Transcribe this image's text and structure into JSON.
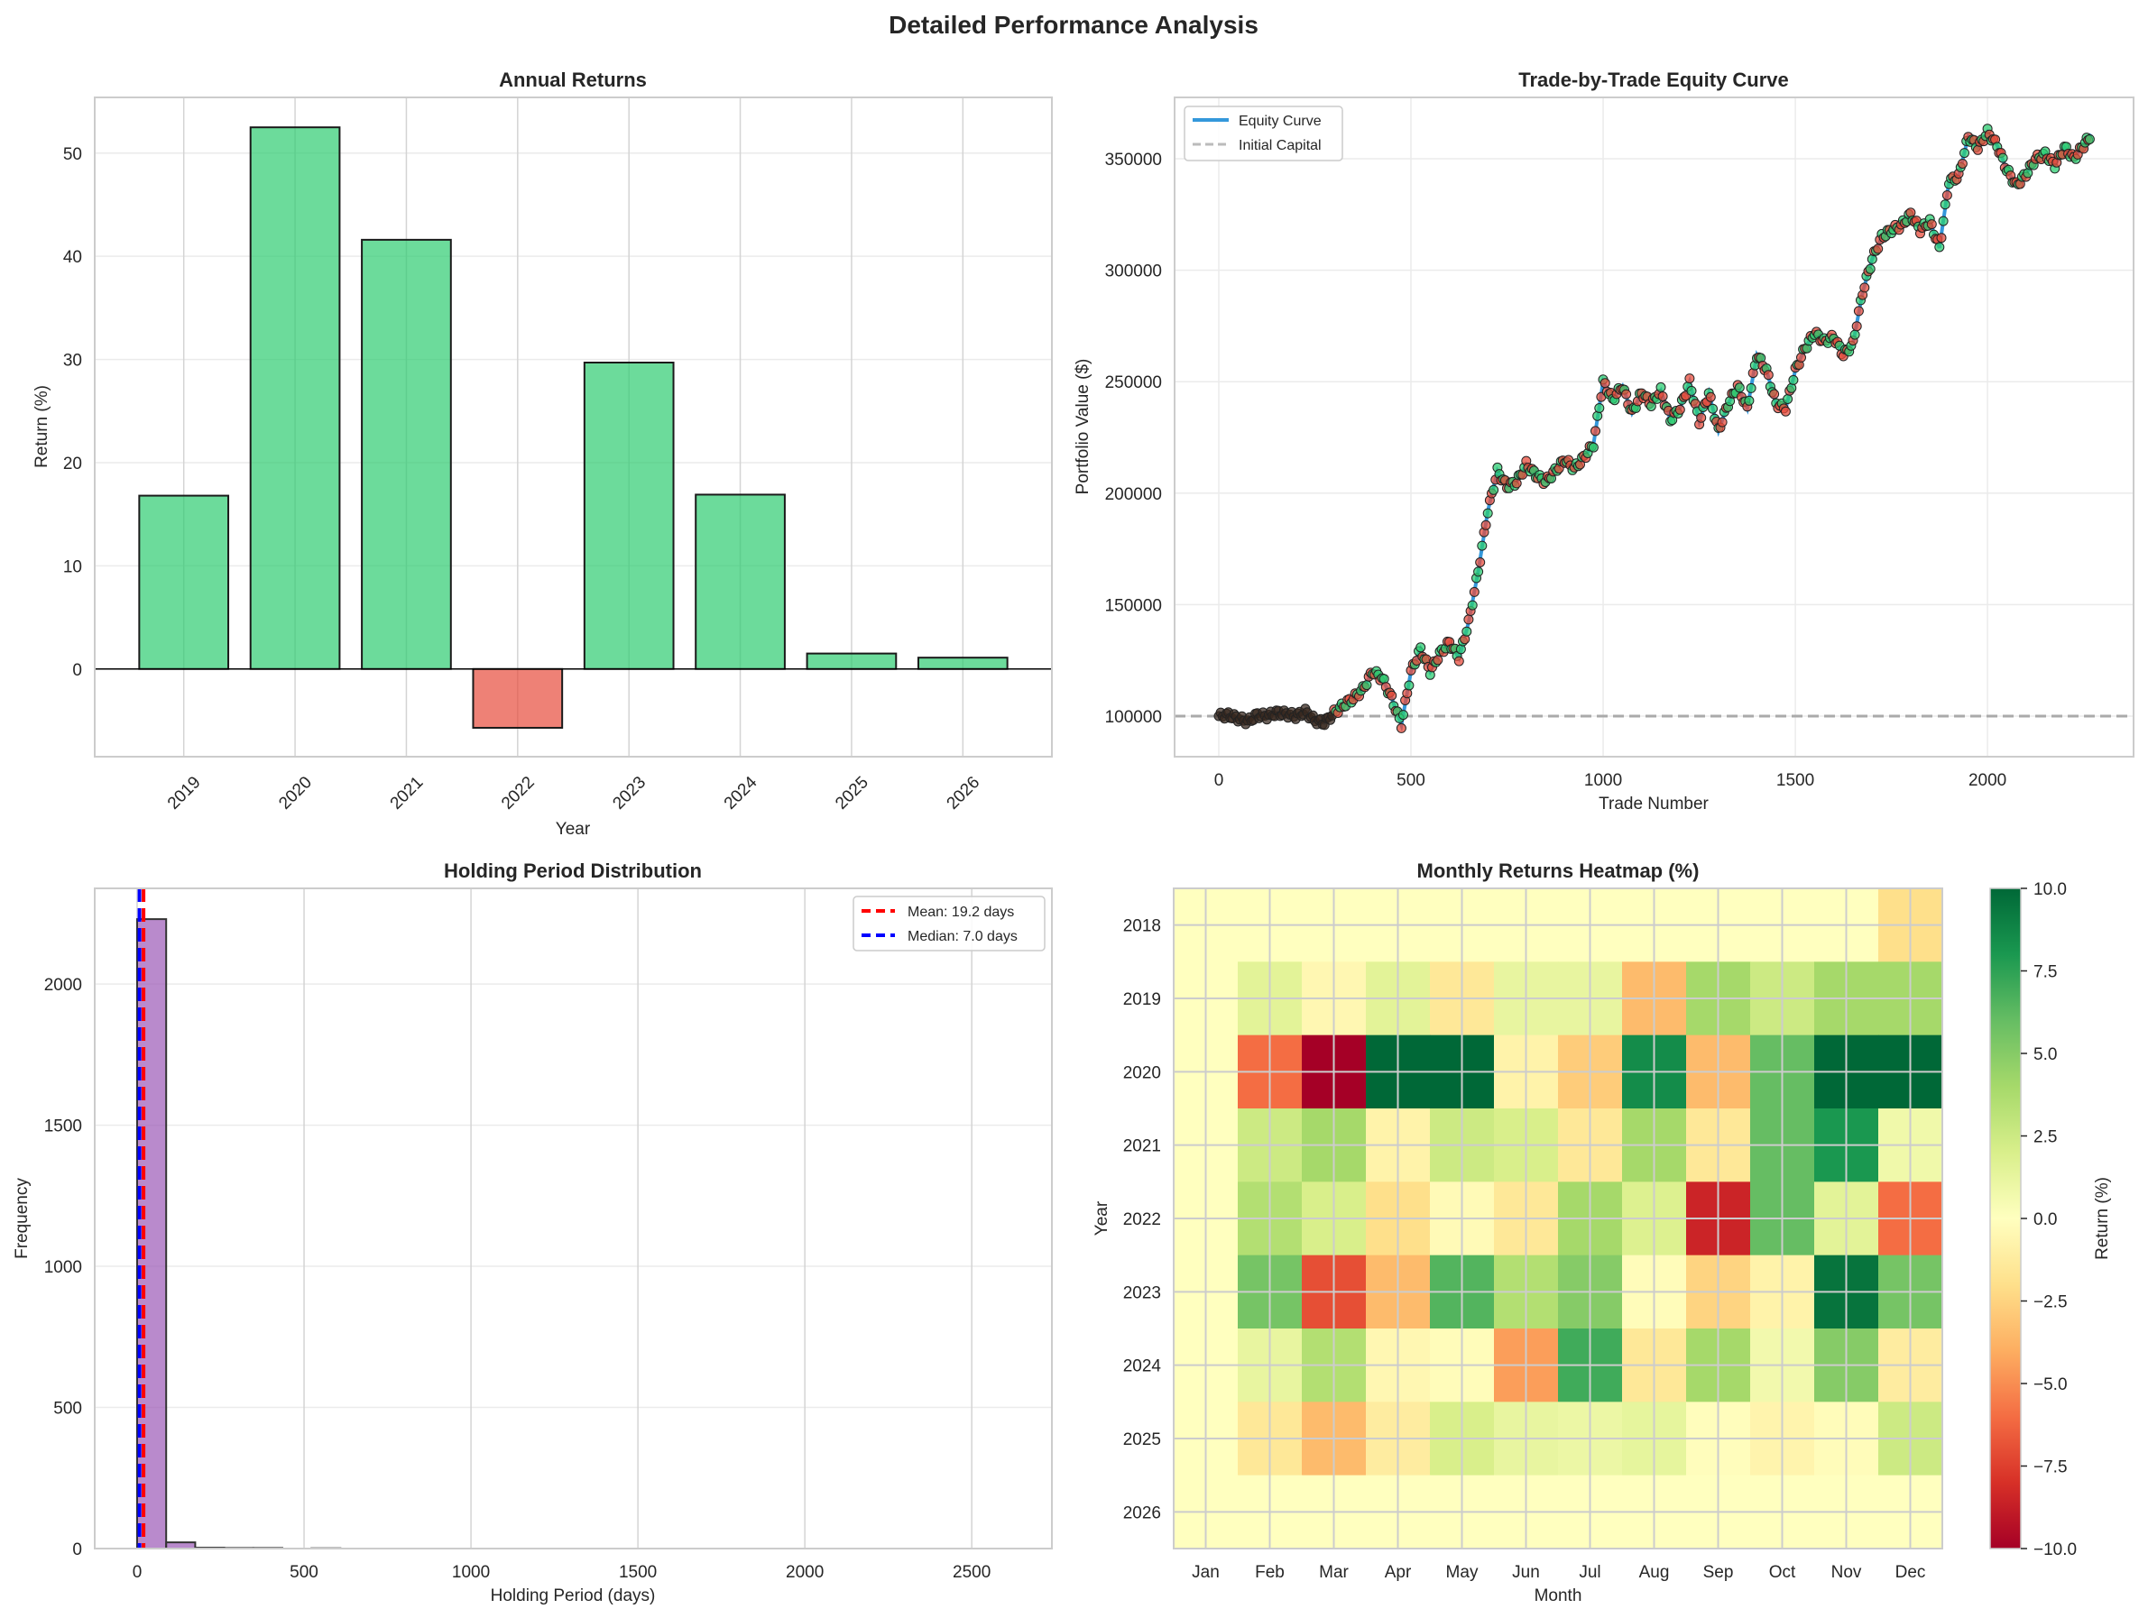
{
  "figure": {
    "title": "Detailed Performance Analysis"
  },
  "colors": {
    "positive_bar": "#2ecc71",
    "negative_bar": "#e74c3c",
    "equity_line": "#3498db",
    "initial_capital_line": "#aaaaaa",
    "hist_bar": "#9b59b6",
    "mean_line": "#ff0000",
    "median_line": "#0000ff"
  },
  "chart_data": [
    {
      "id": "annual",
      "type": "bar",
      "title": "Annual Returns",
      "xlabel": "Year",
      "ylabel": "Return (%)",
      "categories": [
        "2019",
        "2020",
        "2021",
        "2022",
        "2023",
        "2024",
        "2025",
        "2026"
      ],
      "values": [
        16.8,
        52.5,
        41.6,
        -5.7,
        29.7,
        16.9,
        1.5,
        1.1
      ],
      "ylim": [
        -8.5,
        55.4
      ],
      "yticks": [
        0,
        10,
        20,
        30,
        40,
        50
      ],
      "ytick_labels": [
        "0",
        "10",
        "20",
        "30",
        "40",
        "50"
      ],
      "grid": true
    },
    {
      "id": "equity",
      "type": "line",
      "title": "Trade-by-Trade Equity Curve",
      "xlabel": "Trade Number",
      "ylabel": "Portfolio Value ($)",
      "xlim": [
        -115,
        2380
      ],
      "ylim": [
        81800,
        377500
      ],
      "xticks": [
        0,
        500,
        1000,
        1500,
        2000
      ],
      "xtick_labels": [
        "0",
        "500",
        "1000",
        "1500",
        "2000"
      ],
      "yticks": [
        100000,
        150000,
        200000,
        250000,
        300000,
        350000
      ],
      "ytick_labels": [
        "100000",
        "150000",
        "200000",
        "250000",
        "300000",
        "350000"
      ],
      "legend": [
        "Equity Curve",
        "Initial Capital"
      ],
      "legend_position": "upper-left",
      "initial_capital": 100000,
      "x": [
        0,
        25,
        50,
        75,
        100,
        125,
        150,
        175,
        200,
        225,
        250,
        275,
        300,
        325,
        350,
        375,
        400,
        425,
        450,
        475,
        500,
        525,
        550,
        575,
        600,
        625,
        650,
        675,
        700,
        725,
        750,
        775,
        800,
        825,
        850,
        875,
        900,
        925,
        950,
        975,
        1000,
        1025,
        1050,
        1075,
        1100,
        1125,
        1150,
        1175,
        1200,
        1225,
        1250,
        1275,
        1300,
        1325,
        1350,
        1375,
        1400,
        1425,
        1450,
        1475,
        1500,
        1525,
        1550,
        1575,
        1600,
        1625,
        1650,
        1675,
        1700,
        1725,
        1750,
        1775,
        1800,
        1825,
        1850,
        1875,
        1900,
        1925,
        1950,
        1975,
        2000,
        2025,
        2050,
        2075,
        2100,
        2125,
        2150,
        2175,
        2200,
        2225,
        2250,
        2270
      ],
      "y": [
        100000,
        100500,
        99000,
        97500,
        100500,
        100000,
        101500,
        101000,
        100000,
        102000,
        98000,
        97000,
        101500,
        105000,
        108000,
        112000,
        120000,
        117000,
        108000,
        96000,
        120000,
        130000,
        120000,
        128000,
        133000,
        126000,
        142000,
        165000,
        192000,
        210000,
        203000,
        205000,
        213000,
        208000,
        205000,
        210000,
        215000,
        211000,
        216000,
        222000,
        250000,
        242000,
        248000,
        236000,
        245000,
        240000,
        246000,
        233000,
        238000,
        250000,
        232000,
        245000,
        228000,
        240000,
        248000,
        238000,
        262000,
        255000,
        240000,
        238000,
        255000,
        265000,
        272000,
        268000,
        270000,
        262000,
        267000,
        290000,
        305000,
        315000,
        318000,
        320000,
        325000,
        318000,
        322000,
        310000,
        340000,
        342000,
        360000,
        355000,
        362000,
        356000,
        345000,
        338000,
        343000,
        350000,
        352000,
        347000,
        355000,
        350000,
        356000,
        361000
      ]
    },
    {
      "id": "holding",
      "type": "bar",
      "title": "Holding Period Distribution",
      "xlabel": "Holding Period (days)",
      "ylabel": "Frequency",
      "bin_edges": [
        0,
        87,
        174,
        261,
        348,
        435,
        522,
        609
      ],
      "counts": [
        2230,
        22,
        3,
        2,
        2,
        0,
        1
      ],
      "xlim": [
        -127,
        2740
      ],
      "ylim": [
        0,
        2339
      ],
      "xticks": [
        0,
        500,
        1000,
        1500,
        2000,
        2500
      ],
      "xtick_labels": [
        "0",
        "500",
        "1000",
        "1500",
        "2000",
        "2500"
      ],
      "yticks": [
        0,
        500,
        1000,
        1500,
        2000
      ],
      "ytick_labels": [
        "0",
        "500",
        "1000",
        "1500",
        "2000"
      ],
      "mean": 19.2,
      "median": 7.0,
      "legend": [
        "Mean: 19.2 days",
        "Median: 7.0 days"
      ],
      "legend_position": "upper-right"
    },
    {
      "id": "heatmap",
      "type": "heatmap",
      "title": "Monthly Returns Heatmap (%)",
      "xlabel": "Month",
      "ylabel": "Year",
      "columns": [
        "Jan",
        "Feb",
        "Mar",
        "Apr",
        "May",
        "Jun",
        "Jul",
        "Aug",
        "Sep",
        "Oct",
        "Nov",
        "Dec"
      ],
      "rows": [
        "2018",
        "2019",
        "2020",
        "2021",
        "2022",
        "2023",
        "2024",
        "2025",
        "2026"
      ],
      "values": [
        [
          0,
          0,
          0,
          0,
          0,
          0,
          0,
          0,
          0,
          0,
          0,
          -2.0
        ],
        [
          0,
          1.5,
          -0.5,
          1.5,
          -1.5,
          1.2,
          1.2,
          -3.5,
          4.0,
          2.5,
          4.0,
          4.0
        ],
        [
          0,
          -6.0,
          -10.0,
          10.0,
          10.0,
          -0.8,
          -2.8,
          8.5,
          -3.5,
          6.0,
          10.0,
          10.0
        ],
        [
          0,
          2.5,
          4.0,
          -0.8,
          2.5,
          2.0,
          -1.5,
          4.0,
          -1.5,
          6.0,
          8.0,
          0.8
        ],
        [
          0,
          3.5,
          2.0,
          -2.0,
          -0.3,
          -1.5,
          4.0,
          1.8,
          -8.5,
          6.0,
          1.5,
          -6.0
        ],
        [
          0,
          5.5,
          -7.0,
          -3.5,
          6.5,
          3.5,
          5.0,
          -0.2,
          -2.5,
          -0.8,
          9.5,
          5.5
        ],
        [
          0,
          1.2,
          3.5,
          -0.5,
          -0.2,
          -4.5,
          7.0,
          -1.5,
          4.0,
          0.7,
          5.0,
          -1.2
        ],
        [
          0,
          -1.5,
          -3.5,
          -1.2,
          2.0,
          1.2,
          1.0,
          1.3,
          -0.1,
          -0.7,
          -0.2,
          2.5
        ],
        [
          0,
          0,
          0,
          0,
          0,
          0,
          0,
          0,
          0,
          0,
          0,
          0
        ]
      ],
      "vmin": -10,
      "vmax": 10,
      "colormap": "RdYlGn",
      "colorbar_label": "Return (%)",
      "colorbar_ticks": [
        10.0,
        7.5,
        5.0,
        2.5,
        0.0,
        -2.5,
        -5.0,
        -7.5,
        -10.0
      ],
      "colorbar_tick_labels": [
        "10.0",
        "7.5",
        "5.0",
        "2.5",
        "0.0",
        "−2.5",
        "−5.0",
        "−7.5",
        "−10.0"
      ]
    }
  ]
}
